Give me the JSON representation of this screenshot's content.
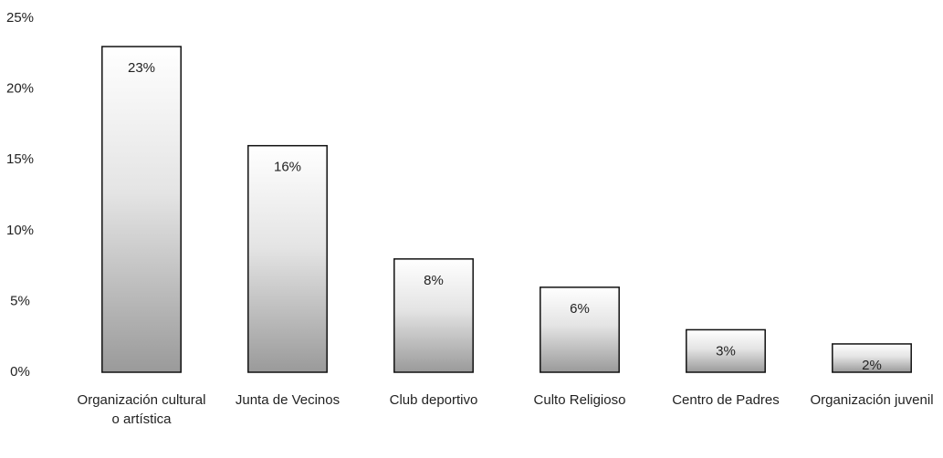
{
  "chart_data": {
    "type": "bar",
    "categories": [
      "Organización cultural o artística",
      "Junta de Vecinos",
      "Club deportivo",
      "Culto Religioso",
      "Centro de Padres",
      "Organización juvenil"
    ],
    "values": [
      23,
      16,
      8,
      6,
      3,
      2
    ],
    "value_labels": [
      "23%",
      "16%",
      "8%",
      "6%",
      "3%",
      "2%"
    ],
    "color": "#9a9a9a",
    "ylim": [
      0,
      25
    ],
    "yticks": [
      {
        "value": 0,
        "label": "0%"
      },
      {
        "value": 5,
        "label": "5%"
      },
      {
        "value": 10,
        "label": "10%"
      },
      {
        "value": 15,
        "label": "15%"
      },
      {
        "value": 20,
        "label": "20%"
      },
      {
        "value": 25,
        "label": "25%"
      }
    ],
    "grid": false
  }
}
